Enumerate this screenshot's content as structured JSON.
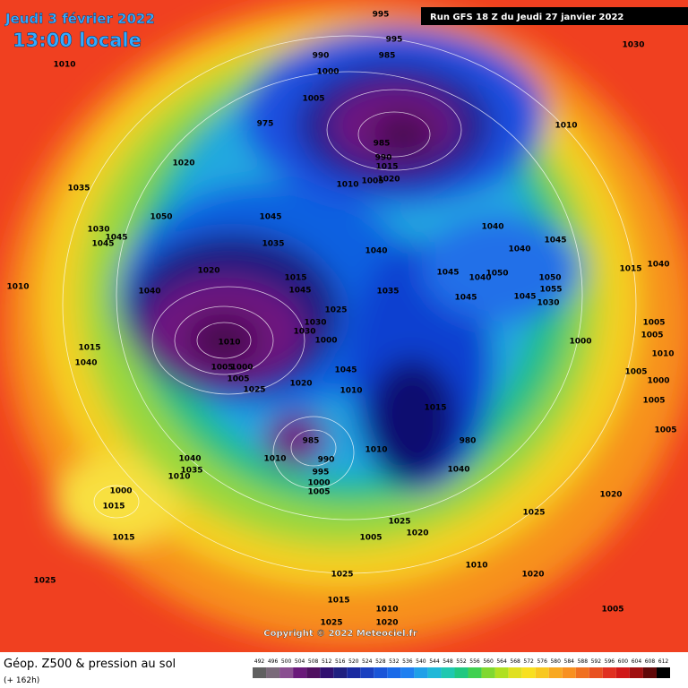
{
  "header": {
    "date": "Jeudi 3 février 2022",
    "time": "13:00 locale",
    "run": "Run GFS 18 Z du Jeudi 27 janvier 2022"
  },
  "map": {
    "copyright": "Copyright © 2022 Meteociel.fr",
    "pressure_labels": [
      "1010",
      "995",
      "995",
      "985",
      "990",
      "1000",
      "1005",
      "975",
      "985",
      "990",
      "1015",
      "1010",
      "1005",
      "1020",
      "1010",
      "1030",
      "1020",
      "1035",
      "1050",
      "1045",
      "1030",
      "1045",
      "1045",
      "1035",
      "1040",
      "1020",
      "1015",
      "1045",
      "1040",
      "1035",
      "1025",
      "1030",
      "1030",
      "1000",
      "1010",
      "1005",
      "1000",
      "1005",
      "1025",
      "1045",
      "1020",
      "1010",
      "1010",
      "1015",
      "1040",
      "1040",
      "1040",
      "1045",
      "1045",
      "1040",
      "1050",
      "1045",
      "1045",
      "1050",
      "1055",
      "1030",
      "1015",
      "1040",
      "1000",
      "1005",
      "1005",
      "1010",
      "1005",
      "1000",
      "1005",
      "1005",
      "1015",
      "980",
      "985",
      "990",
      "995",
      "1000",
      "1005",
      "1010",
      "1010",
      "1040",
      "1040",
      "1035",
      "1010",
      "1000",
      "1015",
      "1015",
      "1020",
      "1025",
      "1025",
      "1020",
      "1005",
      "1010",
      "1020",
      "1025",
      "1015",
      "1025",
      "1025",
      "1020",
      "1010",
      "1005"
    ]
  },
  "legend": {
    "title": "Géop. Z500 & pression au sol",
    "lead": "(+ 162h)",
    "scale": [
      492,
      496,
      500,
      504,
      508,
      512,
      516,
      520,
      524,
      528,
      532,
      536,
      540,
      544,
      548,
      552,
      556,
      560,
      564,
      568,
      572,
      576,
      580,
      584,
      588,
      592,
      596,
      600,
      604,
      608,
      612
    ],
    "colors": [
      "#606060",
      "#7a6a7a",
      "#8a4f90",
      "#6a1a7a",
      "#501060",
      "#301070",
      "#202080",
      "#1a2aa0",
      "#1a40c0",
      "#1a55d8",
      "#1a6ae8",
      "#2080f0",
      "#20a0e8",
      "#20b8d8",
      "#20c8b0",
      "#20c880",
      "#40d050",
      "#80d830",
      "#b0e020",
      "#e0e020",
      "#f8e020",
      "#f8c820",
      "#f8a820",
      "#f89020",
      "#f07020",
      "#e85020",
      "#e03020",
      "#d01818",
      "#a01010",
      "#600808",
      "#000000"
    ]
  }
}
